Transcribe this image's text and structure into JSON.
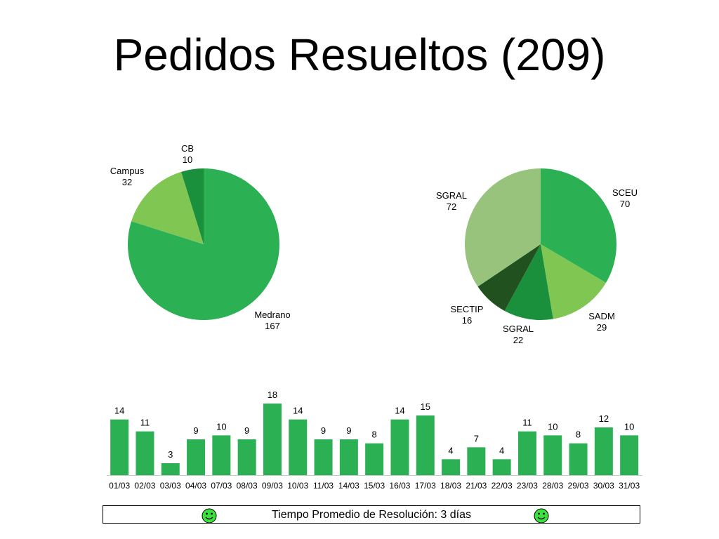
{
  "title": "Pedidos Resueltos (209)",
  "colors": {
    "green": "#2bb153",
    "light_green": "#80c653",
    "dark_green": "#1a8f3c",
    "darkest_green": "#225120",
    "pale_green": "#98c37c",
    "smiley_face": "#3be23b"
  },
  "chart_data": [
    {
      "type": "pie",
      "slices": [
        {
          "label": "Medrano",
          "value": 167,
          "color": "#2bb153"
        },
        {
          "label": "Campus",
          "value": 32,
          "color": "#80c653"
        },
        {
          "label": "CB",
          "value": 10,
          "color": "#1a8f3c"
        }
      ]
    },
    {
      "type": "pie",
      "slices": [
        {
          "label": "SCEU",
          "value": 70,
          "color": "#2bb153"
        },
        {
          "label": "SADM",
          "value": 29,
          "color": "#80c653"
        },
        {
          "label": "SGRAL",
          "value": 22,
          "color": "#1a8f3c"
        },
        {
          "label": "SECTIP",
          "value": 16,
          "color": "#225120"
        },
        {
          "label": "SGRAL",
          "value": 72,
          "color": "#98c37c"
        }
      ]
    },
    {
      "type": "bar",
      "categories": [
        "01/03",
        "02/03",
        "03/03",
        "04/03",
        "07/03",
        "08/03",
        "09/03",
        "10/03",
        "11/03",
        "14/03",
        "15/03",
        "16/03",
        "17/03",
        "18/03",
        "21/03",
        "22/03",
        "23/03",
        "28/03",
        "29/03",
        "30/03",
        "31/03"
      ],
      "values": [
        14,
        11,
        3,
        9,
        10,
        9,
        18,
        14,
        9,
        9,
        8,
        14,
        15,
        4,
        7,
        4,
        11,
        10,
        8,
        12,
        10
      ],
      "color": "#2bb153",
      "ylim": [
        0,
        18
      ]
    }
  ],
  "footer": {
    "text": "Tiempo Promedio de Resolución: 3 días",
    "icon_left": "smiley-icon",
    "icon_right": "smiley-icon"
  }
}
